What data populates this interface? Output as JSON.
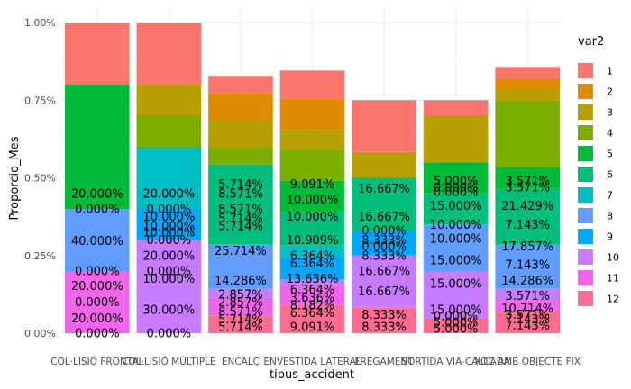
{
  "chart_data": {
    "type": "bar",
    "stacked": true,
    "title": "",
    "xlabel": "tipus_accident",
    "ylabel": "Proporcio_Mes",
    "ylim": [
      0,
      1
    ],
    "yticks": [
      "0.00%",
      "0.25%",
      "0.50%",
      "0.75%",
      "1.00%"
    ],
    "ytick_values": [
      0,
      0.25,
      0.5,
      0.75,
      1
    ],
    "grid": true,
    "legend": {
      "title": "var2",
      "position": "right"
    },
    "categories": [
      "COL·LISIÓ FRONTAL",
      "COL·LISIÓ MÚLTIPLE",
      "ENCALÇ",
      "ENVESTIDA LATERAL",
      "FREGAMENT",
      "SORTIDA VIA-CALÇADA",
      "XOC AMB OBJECTE FIX"
    ],
    "series": [
      {
        "name": "12",
        "color": "#FF6C91",
        "values": [
          0.0,
          0.0,
          0.0571,
          0.0909,
          0.0833,
          0.05,
          0.0714
        ]
      },
      {
        "name": "11",
        "color": "#F066EA",
        "values": [
          0.2,
          0.0,
          0.0571,
          0.0636,
          0.0,
          0.0,
          0.0357
        ]
      },
      {
        "name": "10",
        "color": "#C77CFF",
        "values": [
          0.0,
          0.3,
          0.0286,
          0.0182,
          0.1667,
          0.15,
          0.0357
        ]
      },
      {
        "name": "9",
        "color": "#00A9FF",
        "values": [
          0.0,
          0.1,
          0.0,
          0.0727,
          0.0833,
          0.0,
          0.0
        ]
      },
      {
        "name": "8",
        "color": "#619CFF",
        "values": [
          0.2,
          0.0,
          0.1429,
          0.0,
          0.0,
          0.15,
          0.1429
        ]
      },
      {
        "name": "7",
        "color": "#00BFC4",
        "values": [
          0.0,
          0.2,
          0.0,
          0.0364,
          0.0,
          0.0,
          0.0
        ]
      },
      {
        "name": "6",
        "color": "#00BF7D",
        "values": [
          0.0,
          0.0,
          0.2571,
          0.1091,
          0.1667,
          0.1,
          0.1786
        ]
      },
      {
        "name": "5",
        "color": "#00BA38",
        "values": [
          0.4,
          0.0,
          0.0,
          0.1,
          0.0,
          0.1,
          0.0714
        ]
      },
      {
        "name": "4",
        "color": "#7CAE00",
        "values": [
          0.0,
          0.1,
          0.0571,
          0.1,
          0.0,
          0.0,
          0.2143
        ]
      },
      {
        "name": "3",
        "color": "#B79F00",
        "values": [
          0.0,
          0.1,
          0.0857,
          0.0636,
          0.0833,
          0.15,
          0.0357
        ]
      },
      {
        "name": "2",
        "color": "#DE8C00",
        "values": [
          0.0,
          0.0,
          0.0857,
          0.1,
          0.0,
          0.0,
          0.0357
        ]
      },
      {
        "name": "1",
        "color": "#F8766D",
        "values": [
          0.2,
          0.2,
          0.0571,
          0.0909,
          0.1667,
          0.05,
          0.0357
        ]
      }
    ],
    "legend_order": [
      "1",
      "2",
      "3",
      "4",
      "5",
      "6",
      "7",
      "8",
      "9",
      "10",
      "11",
      "12"
    ],
    "bar_labels": [
      {
        "x": 0,
        "y": 0.0,
        "text": "0.000%"
      },
      {
        "x": 0,
        "y": 0.0475,
        "text": "20.000%"
      },
      {
        "x": 0,
        "y": 0.1,
        "text": "0.000%"
      },
      {
        "x": 0,
        "y": 0.1525,
        "text": "20.000%"
      },
      {
        "x": 0,
        "y": 0.2,
        "text": "0.000%"
      },
      {
        "x": 0,
        "y": 0.2975,
        "text": "40.000%"
      },
      {
        "x": 0,
        "y": 0.4,
        "text": "0.000%"
      },
      {
        "x": 0,
        "y": 0.45,
        "text": "20.000%"
      },
      {
        "x": 1,
        "y": 0.0,
        "text": "0.000%"
      },
      {
        "x": 1,
        "y": 0.075,
        "text": "30.000%"
      },
      {
        "x": 1,
        "y": 0.175,
        "text": "10.000%"
      },
      {
        "x": 1,
        "y": 0.2,
        "text": "0.000%"
      },
      {
        "x": 1,
        "y": 0.25,
        "text": "20.000%"
      },
      {
        "x": 1,
        "y": 0.3,
        "text": "0.000%"
      },
      {
        "x": 1,
        "y": 0.325,
        "text": "10.000%"
      },
      {
        "x": 1,
        "y": 0.345,
        "text": "10.000%"
      },
      {
        "x": 1,
        "y": 0.375,
        "text": "10.000%"
      },
      {
        "x": 1,
        "y": 0.4,
        "text": "0.000%"
      },
      {
        "x": 1,
        "y": 0.45,
        "text": "20.000%"
      },
      {
        "x": 2,
        "y": 0.02,
        "text": "5.714%"
      },
      {
        "x": 2,
        "y": 0.045,
        "text": "5.714%"
      },
      {
        "x": 2,
        "y": 0.07,
        "text": "8.571%"
      },
      {
        "x": 2,
        "y": 0.1,
        "text": "2.857%"
      },
      {
        "x": 2,
        "y": 0.125,
        "text": "2.857%"
      },
      {
        "x": 2,
        "y": 0.17,
        "text": "14.286%"
      },
      {
        "x": 2,
        "y": 0.265,
        "text": "25.714%"
      },
      {
        "x": 2,
        "y": 0.345,
        "text": "5.714%"
      },
      {
        "x": 2,
        "y": 0.37,
        "text": "5.714%"
      },
      {
        "x": 2,
        "y": 0.4,
        "text": "8.571%"
      },
      {
        "x": 2,
        "y": 0.45,
        "text": "8.571%"
      },
      {
        "x": 2,
        "y": 0.48,
        "text": "5.714%"
      },
      {
        "x": 3,
        "y": 0.02,
        "text": "9.091%"
      },
      {
        "x": 3,
        "y": 0.065,
        "text": "6.364%"
      },
      {
        "x": 3,
        "y": 0.09,
        "text": "8.182%"
      },
      {
        "x": 3,
        "y": 0.115,
        "text": "3.636%"
      },
      {
        "x": 3,
        "y": 0.14,
        "text": "6.364%"
      },
      {
        "x": 3,
        "y": 0.175,
        "text": "13.636%"
      },
      {
        "x": 3,
        "y": 0.225,
        "text": "6.364%"
      },
      {
        "x": 3,
        "y": 0.25,
        "text": "6.364%"
      },
      {
        "x": 3,
        "y": 0.3,
        "text": "10.909%"
      },
      {
        "x": 3,
        "y": 0.375,
        "text": "10.000%"
      },
      {
        "x": 3,
        "y": 0.43,
        "text": "10.000%"
      },
      {
        "x": 3,
        "y": 0.48,
        "text": "9.091%"
      },
      {
        "x": 4,
        "y": 0.02,
        "text": "8.333%"
      },
      {
        "x": 4,
        "y": 0.06,
        "text": "8.333%"
      },
      {
        "x": 4,
        "y": 0.135,
        "text": "16.667%"
      },
      {
        "x": 4,
        "y": 0.2,
        "text": "16.667%"
      },
      {
        "x": 4,
        "y": 0.25,
        "text": "8.333%"
      },
      {
        "x": 4,
        "y": 0.28,
        "text": "0.000%"
      },
      {
        "x": 4,
        "y": 0.3,
        "text": "8.333%"
      },
      {
        "x": 4,
        "y": 0.33,
        "text": "0.000%"
      },
      {
        "x": 4,
        "y": 0.375,
        "text": "16.667%"
      },
      {
        "x": 4,
        "y": 0.465,
        "text": "16.667%"
      },
      {
        "x": 5,
        "y": 0.015,
        "text": "5.000%"
      },
      {
        "x": 5,
        "y": 0.035,
        "text": "5.000%"
      },
      {
        "x": 5,
        "y": 0.055,
        "text": "0.000%"
      },
      {
        "x": 5,
        "y": 0.075,
        "text": "15.000%"
      },
      {
        "x": 5,
        "y": 0.16,
        "text": "15.000%"
      },
      {
        "x": 5,
        "y": 0.235,
        "text": "15.000%"
      },
      {
        "x": 5,
        "y": 0.305,
        "text": "10.000%"
      },
      {
        "x": 5,
        "y": 0.35,
        "text": "10.000%"
      },
      {
        "x": 5,
        "y": 0.41,
        "text": "15.000%"
      },
      {
        "x": 5,
        "y": 0.455,
        "text": "0.000%"
      },
      {
        "x": 5,
        "y": 0.47,
        "text": "0.000%"
      },
      {
        "x": 5,
        "y": 0.49,
        "text": "5.000%"
      },
      {
        "x": 6,
        "y": 0.025,
        "text": "7.143%"
      },
      {
        "x": 6,
        "y": 0.045,
        "text": "7.143%"
      },
      {
        "x": 6,
        "y": 0.06,
        "text": "3.571%"
      },
      {
        "x": 6,
        "y": 0.08,
        "text": "10.714%"
      },
      {
        "x": 6,
        "y": 0.12,
        "text": "3.571%"
      },
      {
        "x": 6,
        "y": 0.17,
        "text": "14.286%"
      },
      {
        "x": 6,
        "y": 0.22,
        "text": "7.143%"
      },
      {
        "x": 6,
        "y": 0.28,
        "text": "17.857%"
      },
      {
        "x": 6,
        "y": 0.35,
        "text": "7.143%"
      },
      {
        "x": 6,
        "y": 0.41,
        "text": "21.429%"
      },
      {
        "x": 6,
        "y": 0.47,
        "text": "3.571%"
      },
      {
        "x": 6,
        "y": 0.49,
        "text": "3.571%"
      }
    ]
  }
}
